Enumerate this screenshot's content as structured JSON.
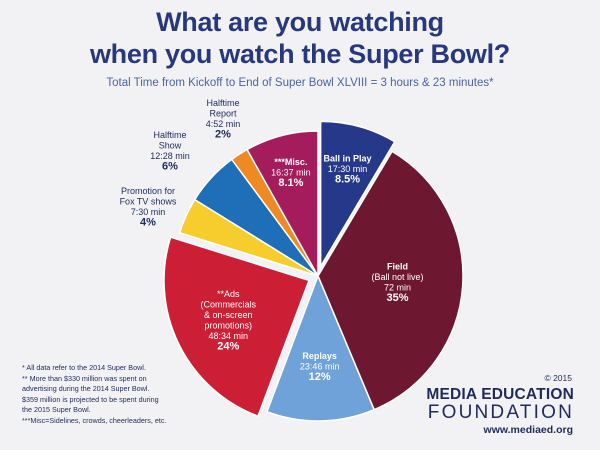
{
  "title_line1": "What are you watching",
  "title_line2": "when you watch the Super Bowl?",
  "subtitle": "Total Time from Kickoff to End of Super Bowl XLVIII = 3 hours & 23 minutes*",
  "chart_data": {
    "type": "pie",
    "title": "What are you watching when you watch the Super Bowl?",
    "subtitle": "Total Time from Kickoff to End of Super Bowl XLVIII = 3 hours & 23 minutes*",
    "total": "3 hours & 23 minutes",
    "slices": [
      {
        "lines": [
          "Ball in Play"
        ],
        "time": "17:30 min",
        "percent": "8.5%",
        "value": 8.5,
        "color": "#26388a",
        "exploded": true,
        "label_color": "#ffffff"
      },
      {
        "lines": [
          "Field",
          "(Ball not live)"
        ],
        "time": "72 min",
        "percent": "35%",
        "value": 35,
        "color": "#6d1830",
        "exploded": false,
        "label_color": "#ffffff"
      },
      {
        "lines": [
          "Replays"
        ],
        "time": "23:46 min",
        "percent": "12%",
        "value": 12,
        "color": "#6fa2d8",
        "exploded": false,
        "label_color": "#ffffff"
      },
      {
        "lines": [
          "**Ads",
          "(Commercials",
          "& on-screen",
          "promotions)"
        ],
        "time": "48:34 min",
        "percent": "24%",
        "value": 24,
        "color": "#cc1f35",
        "exploded": true,
        "label_color": "#ffffff"
      },
      {
        "lines": [
          "Promotion for",
          "Fox TV shows"
        ],
        "time": "7:30 min",
        "percent": "4%",
        "value": 4,
        "color": "#f6cd2c",
        "exploded": false,
        "label_color": "#1e2a5a"
      },
      {
        "lines": [
          "Halftime",
          "Show"
        ],
        "time": "12:28 min",
        "percent": "6%",
        "value": 6,
        "color": "#1f6fb8",
        "exploded": false,
        "label_color": "#1e2a5a"
      },
      {
        "lines": [
          "Halftime",
          "Report"
        ],
        "time": "4:52 min",
        "percent": "2%",
        "value": 2,
        "color": "#ef8a22",
        "exploded": false,
        "label_color": "#1e2a5a"
      },
      {
        "lines": [
          "***Misc."
        ],
        "time": "16:37 min",
        "percent": "8.1%",
        "value": 8.1,
        "color": "#a51c5c",
        "exploded": false,
        "label_color": "#ffffff"
      }
    ]
  },
  "notes": [
    "* All data refer to the 2014 Super Bowl.",
    "** More than $330 million was spent on",
    "advertising during the 2014 Super Bowl.",
    "$359 million is projected to be spent during",
    "the 2015 Super Bowl.",
    "***Misc=Sidelines, crowds, cheerleaders, etc."
  ],
  "copyright": "© 2015",
  "org_line1": "MEDIA EDUCATION",
  "org_line2": "FOUNDATION",
  "website": "www.mediaed.org"
}
